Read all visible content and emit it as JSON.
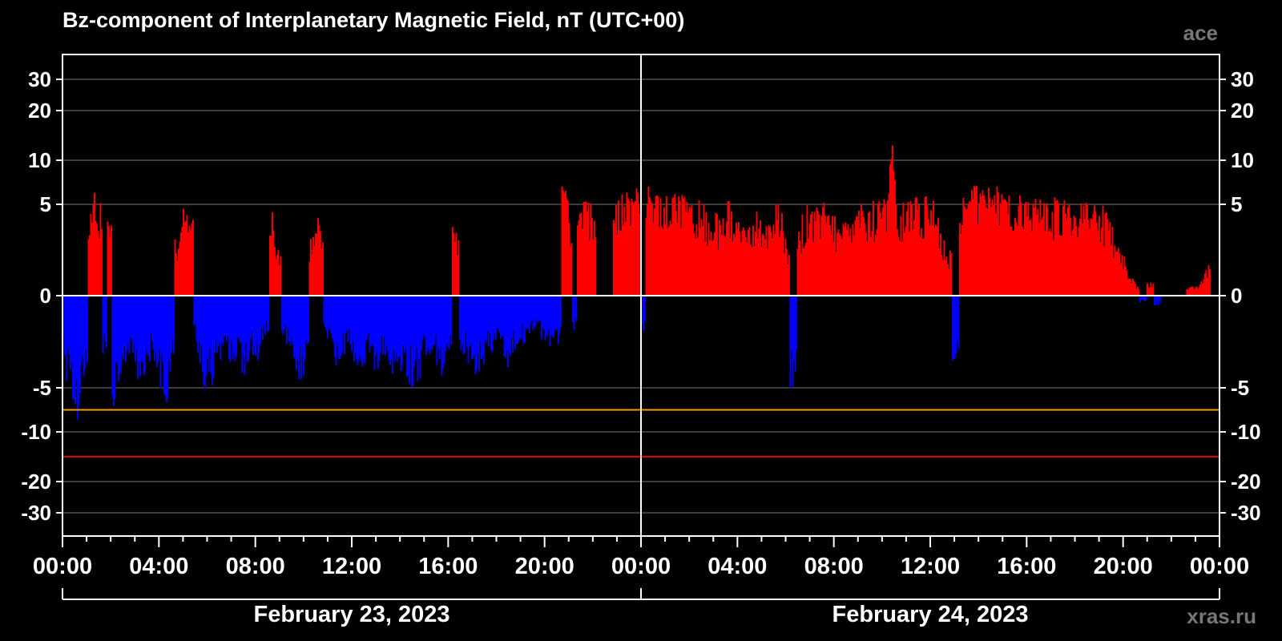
{
  "title": "Bz-component of Interplanetary Magnetic Field, nT (UTC+00)",
  "source_label": "ace",
  "credit": "xras.ru",
  "colors": {
    "background": "#000000",
    "positive": "#ff0000",
    "negative": "#0000ff",
    "grid": "#777777",
    "zero_line": "#ffffff",
    "threshold_orange": "#ff9900",
    "threshold_red": "#e00000"
  },
  "chart_data": {
    "type": "bar",
    "title": "Bz-component of Interplanetary Magnetic Field, nT (UTC+00)",
    "x_unit": "hours since 2023-02-23 00:00 UTC",
    "xlim": [
      0,
      48
    ],
    "ylim": [
      -40,
      40
    ],
    "y_scale": "nonlinear (expanded near zero)",
    "y_ticks": [
      30,
      20,
      10,
      5,
      0,
      -5,
      -10,
      -20,
      -30
    ],
    "x_tick_labels": [
      "00:00",
      "04:00",
      "08:00",
      "12:00",
      "16:00",
      "20:00",
      "00:00",
      "04:00",
      "08:00",
      "12:00",
      "16:00",
      "20:00",
      "00:00"
    ],
    "x_tick_hours": [
      0,
      4,
      8,
      12,
      16,
      20,
      24,
      28,
      32,
      36,
      40,
      44,
      48
    ],
    "date_labels": [
      "February 23, 2023",
      "February 24, 2023"
    ],
    "thresholds": [
      {
        "value": -7.5,
        "color": "orange"
      },
      {
        "value": -15,
        "color": "red"
      }
    ],
    "grid": true,
    "series_profile": [
      [
        0.0,
        -3.5
      ],
      [
        0.3,
        -5.5
      ],
      [
        0.6,
        -8.5
      ],
      [
        0.9,
        -4.0
      ],
      [
        1.1,
        3.8
      ],
      [
        1.3,
        6.3
      ],
      [
        1.5,
        5.2
      ],
      [
        1.7,
        -3.0
      ],
      [
        1.9,
        4.0
      ],
      [
        2.1,
        -7.5
      ],
      [
        2.3,
        -4.5
      ],
      [
        2.6,
        -3.5
      ],
      [
        2.9,
        -4.0
      ],
      [
        3.2,
        -5.5
      ],
      [
        3.5,
        -3.2
      ],
      [
        3.7,
        -4.0
      ],
      [
        3.9,
        -4.5
      ],
      [
        4.1,
        -5.0
      ],
      [
        4.3,
        -6.8
      ],
      [
        4.5,
        -3.0
      ],
      [
        4.7,
        3.2
      ],
      [
        5.0,
        5.0
      ],
      [
        5.3,
        4.7
      ],
      [
        5.5,
        -2.5
      ],
      [
        5.7,
        -4.5
      ],
      [
        6.0,
        -5.3
      ],
      [
        6.3,
        -4.5
      ],
      [
        6.6,
        -3.2
      ],
      [
        6.9,
        -3.5
      ],
      [
        7.2,
        -4.0
      ],
      [
        7.5,
        -4.2
      ],
      [
        7.8,
        -3.0
      ],
      [
        8.1,
        -3.5
      ],
      [
        8.4,
        -2.0
      ],
      [
        8.7,
        4.6
      ],
      [
        8.9,
        2.5
      ],
      [
        9.2,
        -2.5
      ],
      [
        9.5,
        -4.0
      ],
      [
        9.8,
        -4.6
      ],
      [
        10.1,
        -4.2
      ],
      [
        10.3,
        3.0
      ],
      [
        10.5,
        5.6
      ],
      [
        10.7,
        3.5
      ],
      [
        10.9,
        -2.0
      ],
      [
        11.2,
        -3.5
      ],
      [
        11.5,
        -3.8
      ],
      [
        11.8,
        -3.0
      ],
      [
        12.1,
        -3.6
      ],
      [
        12.4,
        -4.0
      ],
      [
        12.7,
        -3.2
      ],
      [
        13.0,
        -4.4
      ],
      [
        13.3,
        -3.5
      ],
      [
        13.6,
        -4.0
      ],
      [
        13.9,
        -4.8
      ],
      [
        14.2,
        -4.4
      ],
      [
        14.5,
        -5.0
      ],
      [
        14.8,
        -4.6
      ],
      [
        15.1,
        -3.0
      ],
      [
        15.4,
        -3.8
      ],
      [
        15.7,
        -4.2
      ],
      [
        16.0,
        -3.0
      ],
      [
        16.3,
        3.8
      ],
      [
        16.6,
        -3.4
      ],
      [
        16.9,
        -3.8
      ],
      [
        17.2,
        -4.2
      ],
      [
        17.5,
        -3.6
      ],
      [
        17.8,
        -3.0
      ],
      [
        18.1,
        -3.2
      ],
      [
        18.4,
        -3.8
      ],
      [
        18.7,
        -3.2
      ],
      [
        19.0,
        -2.8
      ],
      [
        19.3,
        -2.2
      ],
      [
        19.6,
        -2.0
      ],
      [
        19.9,
        -2.6
      ],
      [
        20.2,
        -3.0
      ],
      [
        20.5,
        -2.5
      ],
      [
        20.8,
        7.0
      ],
      [
        21.0,
        4.5
      ],
      [
        21.2,
        -2.2
      ],
      [
        21.4,
        4.0
      ],
      [
        21.6,
        7.5
      ],
      [
        21.8,
        5.2
      ],
      [
        22.0,
        4.8
      ],
      [
        22.2,
        0.0
      ],
      [
        22.6,
        0.0
      ],
      [
        23.0,
        5.8
      ],
      [
        23.3,
        6.7
      ],
      [
        23.6,
        7.0
      ],
      [
        23.9,
        7.2
      ],
      [
        24.0,
        -2.0
      ],
      [
        24.3,
        6.8
      ],
      [
        24.6,
        7.0
      ],
      [
        24.9,
        6.5
      ],
      [
        25.2,
        6.8
      ],
      [
        25.5,
        6.4
      ],
      [
        25.8,
        5.8
      ],
      [
        26.1,
        5.5
      ],
      [
        26.4,
        5.3
      ],
      [
        26.7,
        4.5
      ],
      [
        27.0,
        4.2
      ],
      [
        27.3,
        4.8
      ],
      [
        27.6,
        5.4
      ],
      [
        27.9,
        4.0
      ],
      [
        28.2,
        3.8
      ],
      [
        28.5,
        4.3
      ],
      [
        28.8,
        4.8
      ],
      [
        29.1,
        3.5
      ],
      [
        29.4,
        4.5
      ],
      [
        29.7,
        5.2
      ],
      [
        30.0,
        3.0
      ],
      [
        30.3,
        -4.8
      ],
      [
        30.6,
        4.2
      ],
      [
        30.9,
        4.8
      ],
      [
        31.2,
        4.5
      ],
      [
        31.5,
        5.8
      ],
      [
        31.8,
        4.5
      ],
      [
        32.1,
        4.3
      ],
      [
        32.4,
        4.6
      ],
      [
        32.7,
        4.7
      ],
      [
        33.0,
        5.0
      ],
      [
        33.3,
        5.2
      ],
      [
        33.6,
        5.3
      ],
      [
        33.9,
        5.3
      ],
      [
        34.2,
        5.4
      ],
      [
        34.4,
        14.0
      ],
      [
        34.6,
        5.0
      ],
      [
        34.9,
        5.3
      ],
      [
        35.2,
        5.6
      ],
      [
        35.5,
        5.5
      ],
      [
        35.8,
        5.7
      ],
      [
        36.1,
        5.2
      ],
      [
        36.4,
        3.5
      ],
      [
        36.7,
        2.5
      ],
      [
        37.0,
        -3.5
      ],
      [
        37.3,
        5.8
      ],
      [
        37.6,
        6.6
      ],
      [
        37.9,
        7.0
      ],
      [
        38.2,
        7.0
      ],
      [
        38.5,
        7.1
      ],
      [
        38.8,
        7.0
      ],
      [
        39.1,
        6.6
      ],
      [
        39.4,
        5.3
      ],
      [
        39.7,
        5.8
      ],
      [
        40.0,
        6.0
      ],
      [
        40.3,
        5.9
      ],
      [
        40.6,
        5.8
      ],
      [
        40.9,
        5.6
      ],
      [
        41.2,
        5.5
      ],
      [
        41.5,
        5.3
      ],
      [
        41.8,
        5.2
      ],
      [
        42.1,
        5.0
      ],
      [
        42.4,
        5.1
      ],
      [
        42.7,
        5.0
      ],
      [
        43.0,
        5.1
      ],
      [
        43.3,
        4.5
      ],
      [
        43.6,
        3.5
      ],
      [
        43.9,
        2.5
      ],
      [
        44.2,
        1.5
      ],
      [
        44.5,
        0.6
      ],
      [
        44.8,
        -0.4
      ],
      [
        45.1,
        0.8
      ],
      [
        45.4,
        -0.5
      ],
      [
        45.7,
        0.0
      ],
      [
        46.3,
        0.0
      ],
      [
        46.9,
        0.5
      ],
      [
        47.3,
        0.9
      ],
      [
        47.5,
        1.7
      ],
      [
        47.7,
        0.0
      ]
    ]
  }
}
